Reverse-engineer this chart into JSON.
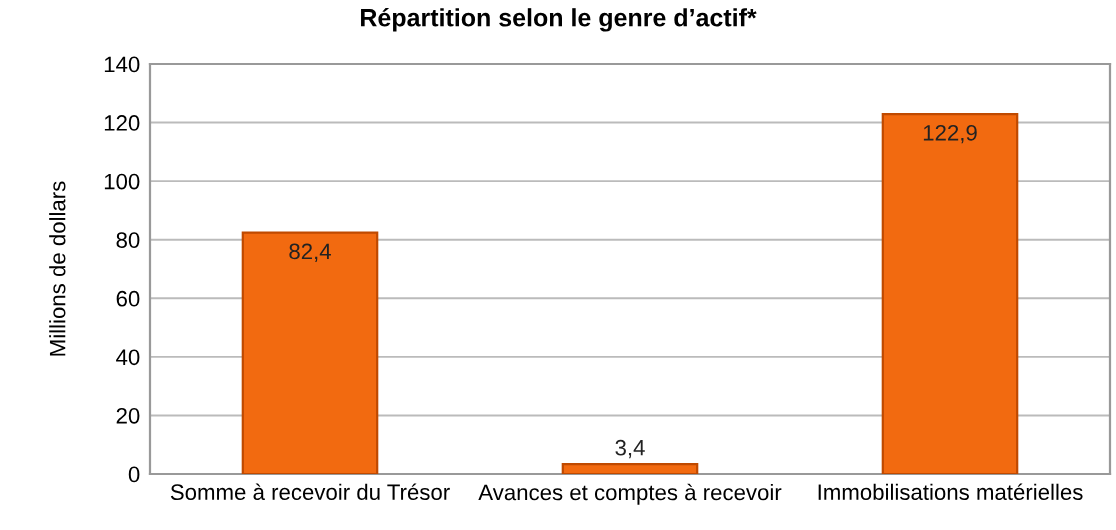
{
  "chart_data": {
    "type": "bar",
    "title": "Répartition selon le genre d’actif*",
    "ylabel": "Millions de dollars",
    "categories": [
      "Somme à recevoir du Trésor",
      "Avances et comptes à recevoir",
      "Immobilisations matérielles"
    ],
    "values": [
      82.4,
      3.4,
      122.9
    ],
    "value_labels": [
      "82,4",
      "3,4",
      "122,9"
    ],
    "color": "#f26a10",
    "ylim": [
      0,
      140
    ],
    "yticks": [
      0,
      20,
      40,
      60,
      80,
      100,
      120,
      140
    ],
    "grid": "y",
    "legend": false
  }
}
